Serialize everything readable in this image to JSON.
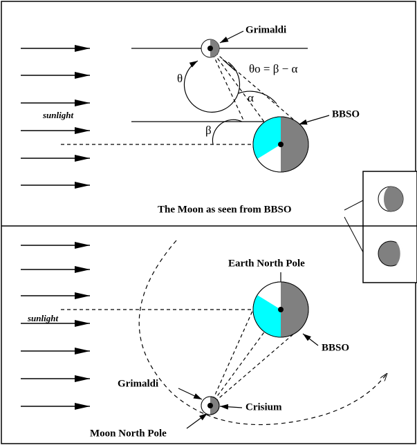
{
  "top_panel": {
    "sunlight": "sunlight",
    "grimaldi": "Grimaldi",
    "theta": "θ",
    "theta0_formula": "θo = β − α",
    "alpha": "α",
    "beta": "β",
    "bbso": "BBSO",
    "moon_seen_caption": "The Moon as seen from BBSO"
  },
  "bottom_panel": {
    "sunlight": "sunlight",
    "earth_north_pole": "Earth North Pole",
    "bbso": "BBSO",
    "grimaldi": "Grimaldi",
    "crisium": "Crisium",
    "moon_north_pole": "Moon North Pole"
  }
}
